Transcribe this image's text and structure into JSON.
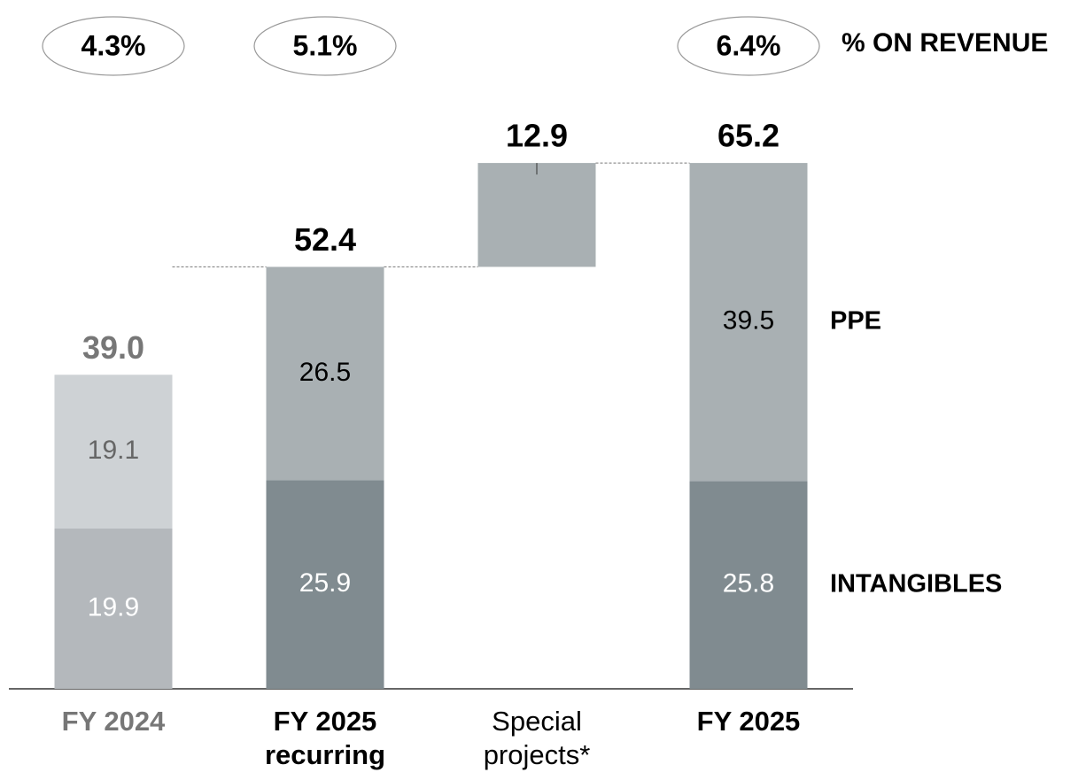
{
  "chart_data": {
    "type": "waterfall",
    "categories": [
      "FY 2024",
      "FY 2025 recurring",
      "Special projects*",
      "FY 2025"
    ],
    "category_colors": [
      "#777777",
      "#000000",
      "#000000",
      "#000000"
    ],
    "category_bold": [
      true,
      true,
      false,
      true
    ],
    "series": [
      {
        "name": "INTANGIBLES",
        "colors": [
          "#b4b8bc",
          "#808b90",
          null,
          "#808b90"
        ],
        "label_colors": [
          "#ffffff",
          "#ffffff",
          null,
          "#ffffff"
        ],
        "values": [
          19.9,
          25.9,
          null,
          25.8
        ]
      },
      {
        "name": "PPE",
        "colors": [
          "#ced2d5",
          "#a9b0b3",
          null,
          "#a9b0b3"
        ],
        "label_colors": [
          "#666666",
          "#000000",
          null,
          "#000000"
        ],
        "values": [
          19.1,
          26.5,
          null,
          39.5
        ]
      }
    ],
    "totals": {
      "values": [
        39.0,
        52.4,
        12.9,
        65.2
      ],
      "value_labels": [
        "39.0",
        "52.4",
        "12.9",
        "65.2"
      ],
      "colors": [
        "#777777",
        "#000000",
        "#000000",
        "#000000"
      ],
      "floating_color": "#a9b0b3"
    },
    "revenue_share": {
      "label": "% ON REVENUE",
      "values": [
        4.3,
        5.1,
        null,
        6.4
      ],
      "value_labels": [
        "4.3%",
        "5.1%",
        null,
        "6.4%"
      ]
    }
  }
}
